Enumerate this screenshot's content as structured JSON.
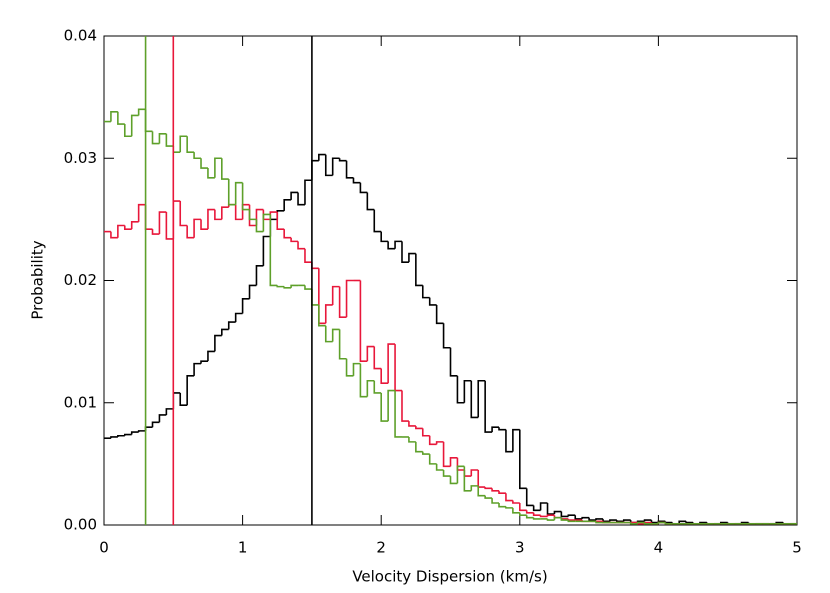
{
  "chart_data": {
    "type": "step-histogram",
    "xlabel": "Velocity Dispersion (km/s)",
    "ylabel": "Probability",
    "xlim": [
      0,
      5
    ],
    "ylim": [
      0,
      0.04
    ],
    "xticks": [
      0,
      1,
      2,
      3,
      4,
      5
    ],
    "yticks": [
      {
        "value": 0,
        "label": "0.00"
      },
      0.01,
      0.02,
      0.03,
      0.04
    ],
    "bins": [
      0,
      0.05,
      0.1,
      0.15,
      0.2,
      0.25,
      0.3,
      0.35,
      0.4,
      0.45,
      0.5,
      0.55,
      0.6,
      0.65,
      0.7,
      0.75,
      0.8,
      0.85,
      0.9,
      0.95,
      1,
      1.05,
      1.1,
      1.15,
      1.2,
      1.25,
      1.3,
      1.35,
      1.4,
      1.45,
      1.5,
      1.55,
      1.6,
      1.65,
      1.7,
      1.75,
      1.8,
      1.85,
      1.9,
      1.95,
      2,
      2.05,
      2.1,
      2.15,
      2.2,
      2.25,
      2.3,
      2.35,
      2.4,
      2.45,
      2.5,
      2.55,
      2.6,
      2.65,
      2.7,
      2.75,
      2.8,
      2.85,
      2.9,
      2.95,
      3,
      3.05,
      3.1,
      3.15,
      3.2,
      3.25,
      3.3,
      3.35,
      3.4,
      3.45,
      3.5,
      3.55,
      3.6,
      3.65,
      3.7,
      3.75,
      3.8,
      3.85,
      3.9,
      3.95,
      4,
      4.05,
      4.1,
      4.15,
      4.2,
      4.25,
      4.3,
      4.35,
      4.4,
      4.45,
      4.5,
      4.55,
      4.6,
      4.65,
      4.7,
      4.75,
      4.8,
      4.85,
      4.9,
      4.95,
      5
    ],
    "series": [
      {
        "color": "#000000",
        "values": [
          0.0071,
          0.0072,
          0.0073,
          0.0074,
          0.0076,
          0.0077,
          0.008,
          0.0084,
          0.009,
          0.0095,
          0.0108,
          0.0098,
          0.0122,
          0.0132,
          0.0134,
          0.0142,
          0.0155,
          0.016,
          0.0166,
          0.0173,
          0.0185,
          0.0196,
          0.0212,
          0.0236,
          0.025,
          0.0257,
          0.0266,
          0.0272,
          0.0262,
          0.0282,
          0.0298,
          0.0303,
          0.0286,
          0.03,
          0.0298,
          0.0284,
          0.028,
          0.0272,
          0.0258,
          0.024,
          0.0232,
          0.0226,
          0.0232,
          0.0215,
          0.0222,
          0.0196,
          0.0186,
          0.018,
          0.0165,
          0.0145,
          0.0122,
          0.01,
          0.0118,
          0.0088,
          0.0118,
          0.0076,
          0.008,
          0.0078,
          0.006,
          0.0078,
          0.003,
          0.0016,
          0.0012,
          0.0018,
          0.0009,
          0.0011,
          0.0007,
          0.0008,
          0.0005,
          0.0006,
          0.0004,
          0.0005,
          0.0003,
          0.0004,
          0.0003,
          0.0004,
          0.0002,
          0.0003,
          0.0004,
          0.0002,
          0.0003,
          0.0002,
          0.0001,
          0.0003,
          0.0002,
          0.0001,
          0.0002,
          0.0001,
          0.0001,
          0.0002,
          0.0001,
          0.0001,
          0.0002,
          0.0001,
          0.0001,
          0.0001,
          0.0001,
          0.0002,
          0.0001,
          0.0001
        ]
      },
      {
        "color": "#e8173a",
        "values": [
          0.024,
          0.0235,
          0.0245,
          0.0242,
          0.0248,
          0.0262,
          0.0242,
          0.0238,
          0.0256,
          0.0234,
          0.0265,
          0.0245,
          0.0235,
          0.025,
          0.0242,
          0.0258,
          0.025,
          0.026,
          0.0262,
          0.025,
          0.0262,
          0.0245,
          0.0258,
          0.025,
          0.0256,
          0.0242,
          0.0235,
          0.0232,
          0.0226,
          0.0215,
          0.021,
          0.0165,
          0.018,
          0.0195,
          0.017,
          0.02,
          0.02,
          0.0134,
          0.0146,
          0.0128,
          0.0116,
          0.0148,
          0.011,
          0.0085,
          0.0081,
          0.0079,
          0.0073,
          0.0066,
          0.0068,
          0.0048,
          0.0055,
          0.0045,
          0.004,
          0.0045,
          0.0031,
          0.003,
          0.0028,
          0.0026,
          0.002,
          0.0018,
          0.0012,
          0.001,
          0.0008,
          0.0007,
          0.0008,
          0.0006,
          0.0005,
          0.0004,
          0.0004,
          0.0003,
          0.0003,
          0.0003,
          0.0002,
          0.0002,
          0.0002,
          0.0002,
          0.0002,
          0.0001,
          0.0002,
          0.0001,
          0.0002,
          0.0001,
          0.0001,
          0.0001,
          0.0001,
          0.0001,
          0.0001,
          0.0001,
          0.0001,
          0.0001,
          0.0001,
          0.0001,
          0.0001,
          0.0001,
          0.0001,
          0.0001,
          0.0001,
          0.0001,
          0.0001,
          0.0001
        ]
      },
      {
        "color": "#5ea02a",
        "values": [
          0.033,
          0.0338,
          0.0328,
          0.0318,
          0.0335,
          0.034,
          0.0322,
          0.0312,
          0.032,
          0.031,
          0.0305,
          0.0318,
          0.0305,
          0.03,
          0.0292,
          0.0284,
          0.03,
          0.0283,
          0.0262,
          0.028,
          0.0258,
          0.025,
          0.024,
          0.0254,
          0.0196,
          0.0195,
          0.0194,
          0.0196,
          0.0196,
          0.0193,
          0.018,
          0.0163,
          0.015,
          0.016,
          0.0136,
          0.0122,
          0.0132,
          0.0105,
          0.0118,
          0.0108,
          0.0085,
          0.011,
          0.0072,
          0.0072,
          0.0068,
          0.006,
          0.0058,
          0.005,
          0.0045,
          0.004,
          0.0034,
          0.0048,
          0.0028,
          0.0032,
          0.0024,
          0.0022,
          0.0018,
          0.0015,
          0.0014,
          0.001,
          0.0008,
          0.0006,
          0.0005,
          0.0005,
          0.0004,
          0.0006,
          0.0004,
          0.0003,
          0.0003,
          0.0003,
          0.0003,
          0.0002,
          0.0002,
          0.0002,
          0.0002,
          0.0002,
          0.0001,
          0.0002,
          0.0001,
          0.0001,
          0.0002,
          0.0001,
          0.0001,
          0.0001,
          0.0001,
          0.0001,
          0.0001,
          0.0001,
          0.0001,
          0.0001,
          0.0001,
          0.0001,
          0.0001,
          0.0001,
          0.0001,
          0.0001,
          0.0001,
          0.0001,
          0.0001,
          0.0001
        ]
      }
    ],
    "vlines": [
      {
        "x": 0.3,
        "color": "#5ea02a"
      },
      {
        "x": 0.5,
        "color": "#e8173a"
      },
      {
        "x": 1.5,
        "color": "#000000"
      }
    ]
  }
}
